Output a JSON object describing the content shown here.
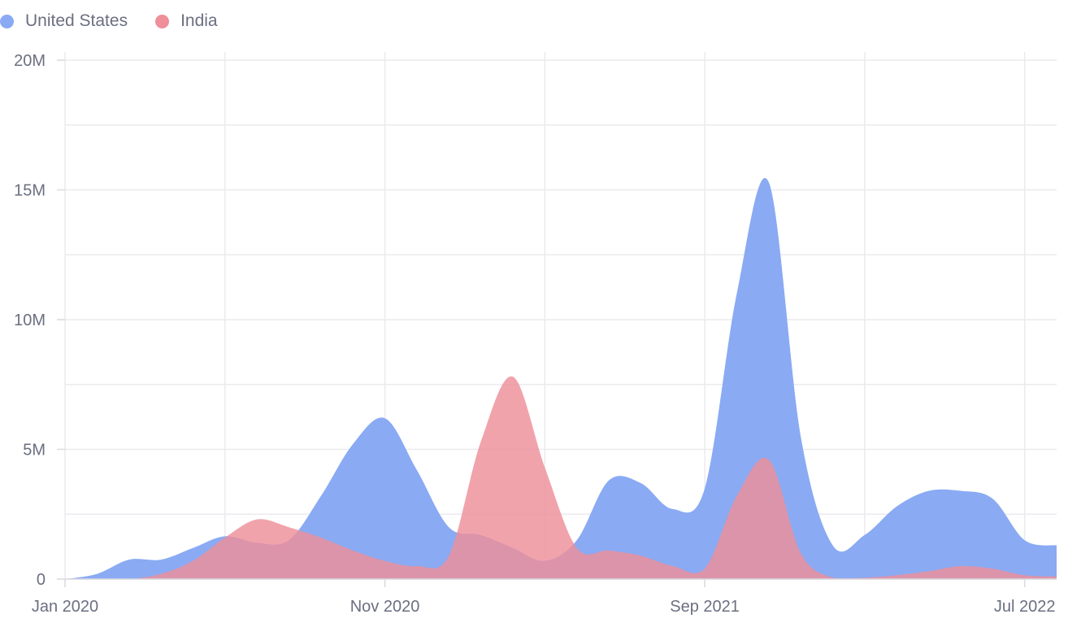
{
  "legend": [
    {
      "name": "United States",
      "color": "#8aaaf3"
    },
    {
      "name": "India",
      "color": "#ee8f9a"
    }
  ],
  "chart_data": {
    "type": "area",
    "title": "",
    "xlabel": "",
    "ylabel": "",
    "x": [
      "2020-01",
      "2020-02",
      "2020-03",
      "2020-04",
      "2020-05",
      "2020-06",
      "2020-07",
      "2020-08",
      "2020-09",
      "2020-10",
      "2020-11",
      "2020-12",
      "2021-01",
      "2021-02",
      "2021-03",
      "2021-04",
      "2021-05",
      "2021-06",
      "2021-07",
      "2021-08",
      "2021-09",
      "2021-10",
      "2021-11",
      "2021-12",
      "2022-01",
      "2022-02",
      "2022-03",
      "2022-04",
      "2022-05",
      "2022-06",
      "2022-07",
      "2022-08"
    ],
    "x_tick_labels": [
      "Jan 2020",
      "Nov 2020",
      "Sep 2021",
      "Jul 2022"
    ],
    "y_tick_labels": [
      "0",
      "5M",
      "10M",
      "15M",
      "20M"
    ],
    "ylim": [
      0,
      20000000
    ],
    "grid": true,
    "legend_position": "top-left",
    "series": [
      {
        "name": "United States",
        "color": "#8aaaf3",
        "values": [
          0,
          200000,
          750000,
          750000,
          1200000,
          1650000,
          1400000,
          1500000,
          3200000,
          5200000,
          6200000,
          4200000,
          2000000,
          1700000,
          1200000,
          700000,
          1500000,
          3800000,
          3700000,
          2700000,
          3500000,
          11000000,
          15300000,
          5500000,
          1300000,
          1700000,
          2800000,
          3400000,
          3400000,
          3100000,
          1500000,
          1300000
        ]
      },
      {
        "name": "India",
        "color": "#ee8f9a",
        "values": [
          0,
          0,
          0,
          200000,
          700000,
          1600000,
          2300000,
          2000000,
          1600000,
          1100000,
          700000,
          500000,
          900000,
          5300000,
          7800000,
          4300000,
          1200000,
          1100000,
          900000,
          500000,
          400000,
          3200000,
          4600000,
          1000000,
          50000,
          50000,
          150000,
          300000,
          500000,
          400000,
          150000,
          100000
        ]
      }
    ]
  }
}
